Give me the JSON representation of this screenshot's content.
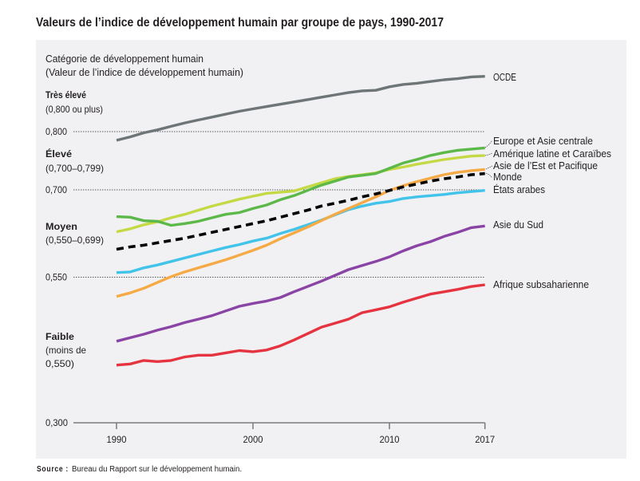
{
  "title": "Valeurs de l’indice de développement humain par groupe de pays, 1990-2017",
  "source": {
    "label": "Source :",
    "text": "Bureau du Rapport sur le développement humain."
  },
  "chart_data": {
    "type": "line",
    "title": "Valeurs de l’indice de développement humain par groupe de pays, 1990-2017",
    "xlabel": "",
    "ylabel": "Catégorie de développement humain (Valeur de l’indice de développement humain)",
    "y_header": [
      "Catégorie de développement humain",
      "(Valeur de l’indice de développement humain)"
    ],
    "categories": [
      {
        "name": "Très élevé",
        "range": [
          "(0,800 ou plus)"
        ]
      },
      {
        "name": "Élevé",
        "range": [
          "(0,700–0,799)"
        ]
      },
      {
        "name": "Moyen",
        "range": [
          "(0,550–0,699)"
        ]
      },
      {
        "name": "Faible",
        "range": [
          "(moins de",
          " 0,550)"
        ]
      }
    ],
    "yticks": [
      {
        "value": 0.8,
        "label": "0,800"
      },
      {
        "value": 0.7,
        "label": "0,700"
      },
      {
        "value": 0.55,
        "label": "0,550"
      },
      {
        "value": 0.3,
        "label": "0,300"
      }
    ],
    "xticks": [
      {
        "value": 1990,
        "label": "1990"
      },
      {
        "value": 2000,
        "label": "2000"
      },
      {
        "value": 2010,
        "label": "2010"
      },
      {
        "value": 2017,
        "label": "2017"
      }
    ],
    "ylim": [
      0.3,
      0.9
    ],
    "xlim": [
      1990,
      2017
    ],
    "grid": "dotted horizontal lines at 0,550, 0,700 and 0,800",
    "legend": "right, labels at line ends",
    "x": [
      1990,
      1991,
      1992,
      1993,
      1994,
      1995,
      1996,
      1997,
      1998,
      1999,
      2000,
      2001,
      2002,
      2003,
      2004,
      2005,
      2006,
      2007,
      2008,
      2009,
      2010,
      2011,
      2012,
      2013,
      2014,
      2015,
      2016,
      2017
    ],
    "series": [
      {
        "name": "OCDE",
        "color": "#6d7576",
        "style": "solid",
        "values": [
          0.785,
          0.791,
          0.798,
          0.803,
          0.809,
          0.815,
          0.82,
          0.825,
          0.83,
          0.835,
          0.839,
          0.843,
          0.847,
          0.851,
          0.855,
          0.859,
          0.863,
          0.867,
          0.87,
          0.871,
          0.877,
          0.881,
          0.883,
          0.886,
          0.889,
          0.891,
          0.894,
          0.895
        ]
      },
      {
        "name": "Europe et Asie centrale",
        "color": "#5cb848",
        "style": "solid",
        "values": [
          0.654,
          0.653,
          0.647,
          0.646,
          0.639,
          0.642,
          0.646,
          0.652,
          0.658,
          0.661,
          0.668,
          0.674,
          0.683,
          0.69,
          0.699,
          0.708,
          0.715,
          0.722,
          0.725,
          0.728,
          0.737,
          0.746,
          0.752,
          0.759,
          0.764,
          0.768,
          0.77,
          0.772
        ]
      },
      {
        "name": "Amérique latine et Caraïbes",
        "color": "#c4d944",
        "style": "solid",
        "values": [
          0.628,
          0.633,
          0.64,
          0.645,
          0.652,
          0.658,
          0.665,
          0.672,
          0.678,
          0.684,
          0.689,
          0.694,
          0.696,
          0.698,
          0.705,
          0.712,
          0.719,
          0.723,
          0.726,
          0.729,
          0.735,
          0.739,
          0.744,
          0.748,
          0.752,
          0.755,
          0.758,
          0.759
        ]
      },
      {
        "name": "Asie de l’Est et Pacifique",
        "color": "#f6aa45",
        "style": "solid",
        "values": [
          0.517,
          0.523,
          0.531,
          0.541,
          0.551,
          0.559,
          0.566,
          0.573,
          0.58,
          0.588,
          0.596,
          0.605,
          0.616,
          0.626,
          0.636,
          0.647,
          0.658,
          0.668,
          0.678,
          0.688,
          0.699,
          0.707,
          0.714,
          0.72,
          0.726,
          0.73,
          0.733,
          0.735
        ]
      },
      {
        "name": "Monde",
        "color": "#000000",
        "style": "dashed",
        "values": [
          0.598,
          0.602,
          0.605,
          0.609,
          0.613,
          0.617,
          0.622,
          0.627,
          0.632,
          0.637,
          0.642,
          0.647,
          0.653,
          0.659,
          0.665,
          0.672,
          0.677,
          0.682,
          0.688,
          0.693,
          0.699,
          0.705,
          0.71,
          0.715,
          0.719,
          0.722,
          0.726,
          0.728
        ]
      },
      {
        "name": "États arabes",
        "color": "#41c3ea",
        "style": "solid",
        "values": [
          0.558,
          0.559,
          0.566,
          0.571,
          0.577,
          0.583,
          0.589,
          0.595,
          0.601,
          0.606,
          0.612,
          0.617,
          0.625,
          0.632,
          0.64,
          0.648,
          0.657,
          0.666,
          0.672,
          0.677,
          0.68,
          0.685,
          0.688,
          0.69,
          0.692,
          0.695,
          0.697,
          0.699
        ]
      },
      {
        "name": "Asie du Sud",
        "color": "#8a44a5",
        "style": "solid",
        "values": [
          0.44,
          0.446,
          0.452,
          0.459,
          0.465,
          0.472,
          0.478,
          0.484,
          0.492,
          0.5,
          0.505,
          0.509,
          0.515,
          0.525,
          0.534,
          0.543,
          0.553,
          0.563,
          0.57,
          0.577,
          0.585,
          0.595,
          0.604,
          0.611,
          0.62,
          0.627,
          0.635,
          0.638
        ]
      },
      {
        "name": "Afrique subsaharienne",
        "color": "#e53440",
        "style": "solid",
        "values": [
          0.399,
          0.401,
          0.407,
          0.405,
          0.407,
          0.413,
          0.416,
          0.416,
          0.42,
          0.424,
          0.422,
          0.425,
          0.432,
          0.442,
          0.453,
          0.464,
          0.471,
          0.478,
          0.489,
          0.494,
          0.499,
          0.507,
          0.514,
          0.521,
          0.525,
          0.529,
          0.534,
          0.537
        ]
      }
    ]
  }
}
